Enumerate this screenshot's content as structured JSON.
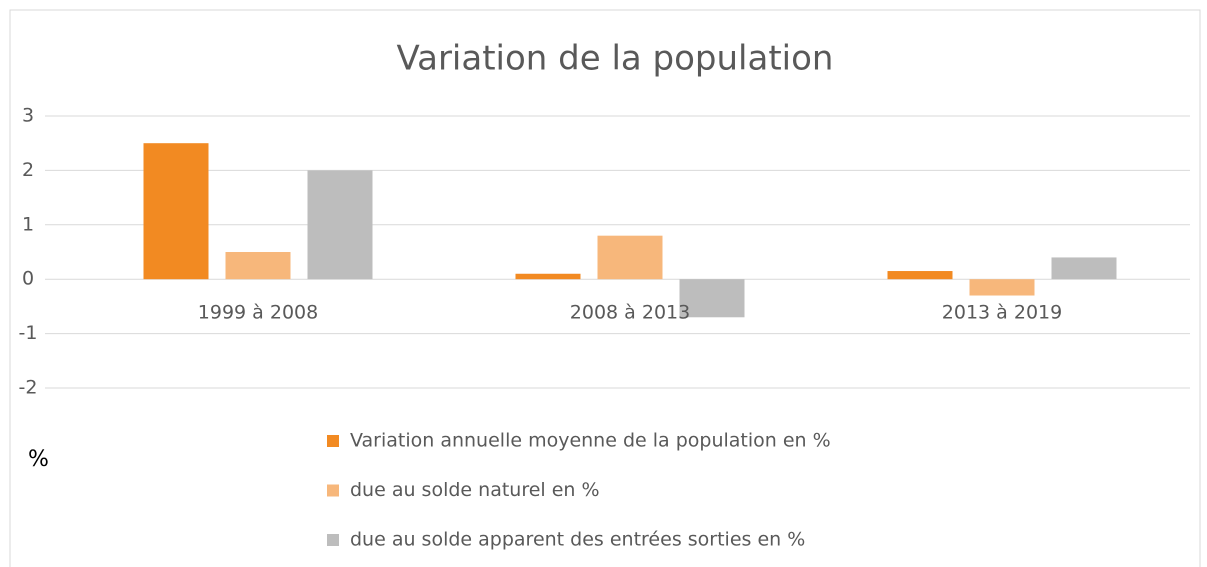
{
  "chart_data": {
    "type": "bar",
    "title": "Variation de la population",
    "y_label": "%",
    "categories": [
      "1999 à 2008",
      "2008 à 2013",
      "2013 à 2019"
    ],
    "series": [
      {
        "name": "Variation annuelle moyenne de la population en %",
        "color": "#f28a22",
        "values": [
          2.5,
          0.1,
          0.15
        ]
      },
      {
        "name": "due au solde naturel en %",
        "color": "#f7b77b",
        "values": [
          0.5,
          0.8,
          -0.3
        ]
      },
      {
        "name": "due au solde apparent des entrées sorties en %",
        "color": "#bdbdbd",
        "values": [
          2.0,
          -0.7,
          0.4
        ]
      }
    ],
    "ylim": [
      -2,
      3
    ],
    "yticks": [
      -2,
      -1,
      0,
      1,
      2,
      3
    ],
    "grid": true
  }
}
